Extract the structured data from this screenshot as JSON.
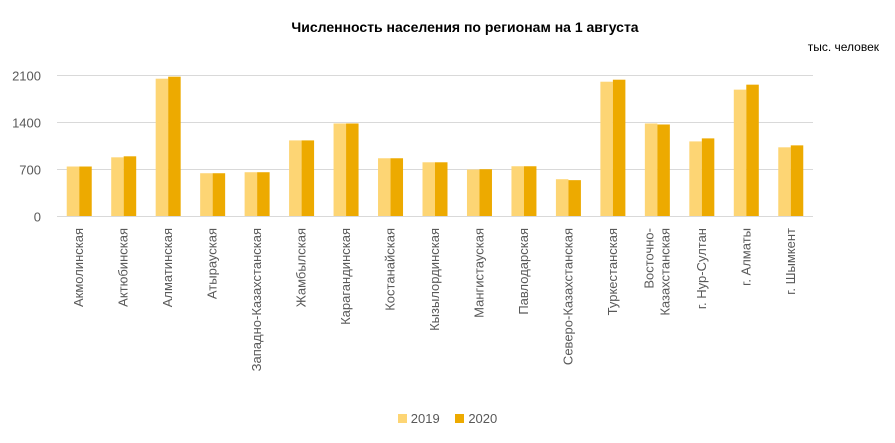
{
  "chart_data": {
    "type": "bar",
    "title": "Численность населения по регионам на 1 августа",
    "unit_label": "тыс. человек",
    "ylim": [
      0,
      2100
    ],
    "yticks": [
      "0",
      "700",
      "1400",
      "2100"
    ],
    "grid": true,
    "legend_position": "bottom",
    "categories": [
      "Акмолинская",
      "Актюбинская",
      "Алматинская",
      "Атырауская",
      "Западно-Казахстанская",
      "Жамбылская",
      "Карагандинская",
      "Костанайская",
      "Кызылординская",
      "Мангистауская",
      "Павлодарская",
      "Северо-Казахстанская",
      "Туркестанская",
      "Восточно-Казахстанская",
      "г. Нур-Султан",
      "г. Алматы",
      "г. Шымкент"
    ],
    "series": [
      {
        "name": "2019",
        "color": "#FDD574",
        "values": [
          737,
          874,
          2045,
          637,
          652,
          1126,
          1378,
          860,
          800,
          692,
          741,
          548,
          2000,
          1378,
          1111,
          1882,
          1023
        ]
      },
      {
        "name": "2020",
        "color": "#EDAA00",
        "values": [
          737,
          889,
          2075,
          637,
          652,
          1126,
          1378,
          860,
          800,
          697,
          741,
          534,
          2030,
          1363,
          1156,
          1956,
          1052
        ]
      }
    ]
  }
}
